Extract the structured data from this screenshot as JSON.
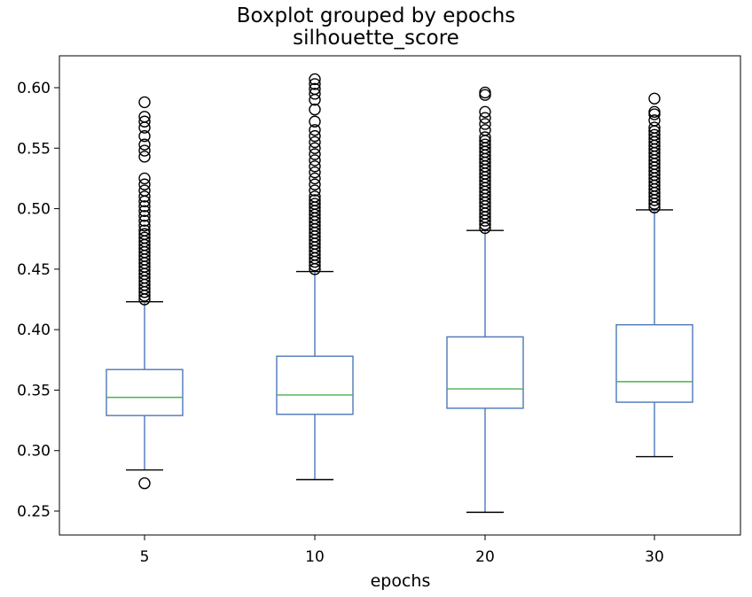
{
  "chart_data": {
    "type": "box",
    "title": "Boxplot grouped by epochs",
    "subtitle": "silhouette_score",
    "xlabel": "epochs",
    "ylabel": "",
    "ylim": [
      0.23,
      0.625
    ],
    "yticks": [
      0.25,
      0.3,
      0.35,
      0.4,
      0.45,
      0.5,
      0.55,
      0.6
    ],
    "ytick_labels": [
      "0.25",
      "0.30",
      "0.35",
      "0.40",
      "0.45",
      "0.50",
      "0.55",
      "0.60"
    ],
    "grid": false,
    "colors": {
      "box": "#4c78b8",
      "median": "#4caf50",
      "cap": "#000000",
      "flier": "#000000"
    },
    "categories": [
      "5",
      "10",
      "20",
      "30"
    ],
    "boxes": [
      {
        "label": "5",
        "whisker_low": 0.284,
        "q1": 0.329,
        "median": 0.344,
        "q3": 0.367,
        "whisker_high": 0.423,
        "fliers": [
          0.273,
          0.425,
          0.428,
          0.431,
          0.434,
          0.437,
          0.44,
          0.443,
          0.446,
          0.449,
          0.452,
          0.455,
          0.458,
          0.461,
          0.464,
          0.467,
          0.47,
          0.473,
          0.476,
          0.479,
          0.482,
          0.486,
          0.49,
          0.494,
          0.498,
          0.502,
          0.506,
          0.51,
          0.515,
          0.52,
          0.525,
          0.543,
          0.548,
          0.553,
          0.56,
          0.567,
          0.572,
          0.576,
          0.588
        ]
      },
      {
        "label": "10",
        "whisker_low": 0.276,
        "q1": 0.33,
        "median": 0.346,
        "q3": 0.378,
        "whisker_high": 0.448,
        "fliers": [
          0.45,
          0.453,
          0.456,
          0.459,
          0.462,
          0.465,
          0.468,
          0.471,
          0.474,
          0.477,
          0.48,
          0.483,
          0.486,
          0.489,
          0.492,
          0.495,
          0.498,
          0.501,
          0.504,
          0.507,
          0.51,
          0.515,
          0.52,
          0.525,
          0.53,
          0.535,
          0.54,
          0.545,
          0.55,
          0.555,
          0.56,
          0.565,
          0.572,
          0.582,
          0.59,
          0.595,
          0.599,
          0.603,
          0.607
        ]
      },
      {
        "label": "20",
        "whisker_low": 0.249,
        "q1": 0.335,
        "median": 0.351,
        "q3": 0.394,
        "whisker_high": 0.482,
        "fliers": [
          0.484,
          0.487,
          0.49,
          0.493,
          0.496,
          0.499,
          0.502,
          0.505,
          0.508,
          0.511,
          0.514,
          0.517,
          0.52,
          0.523,
          0.526,
          0.529,
          0.532,
          0.535,
          0.538,
          0.541,
          0.544,
          0.547,
          0.55,
          0.553,
          0.556,
          0.559,
          0.565,
          0.57,
          0.575,
          0.58,
          0.594,
          0.596
        ]
      },
      {
        "label": "30",
        "whisker_low": 0.295,
        "q1": 0.34,
        "median": 0.357,
        "q3": 0.404,
        "whisker_high": 0.499,
        "fliers": [
          0.501,
          0.504,
          0.507,
          0.51,
          0.513,
          0.516,
          0.519,
          0.522,
          0.525,
          0.528,
          0.531,
          0.534,
          0.537,
          0.54,
          0.543,
          0.546,
          0.549,
          0.552,
          0.555,
          0.558,
          0.561,
          0.564,
          0.567,
          0.573,
          0.578,
          0.58,
          0.591
        ]
      }
    ]
  }
}
